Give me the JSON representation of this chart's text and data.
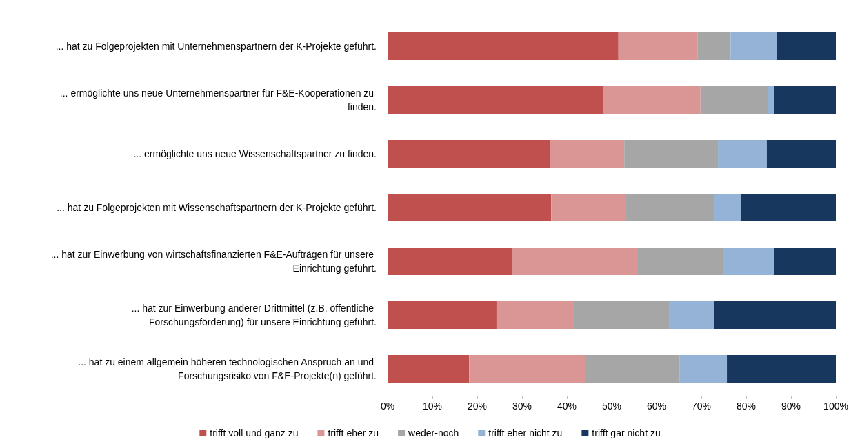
{
  "chart_data": {
    "type": "bar",
    "orientation": "horizontal",
    "stacked": true,
    "categories": [
      "... hat zu Folgeprojekten mit Unternehmenspartnern der K-Projekte geführt.",
      "... ermöglichte uns neue Unternehmenspartner für F&E-Kooperationen zu finden.",
      "... ermöglichte uns neue Wissenschaftspartner zu finden.",
      "... hat zu Folgeprojekten mit Wissenschaftspartnern der K-Projekte geführt.",
      "... hat zur Einwerbung von wirtschaftsfinanzierten F&E-Aufträgen für unsere Einrichtung geführt.",
      "... hat zur Einwerbung anderer Drittmittel (z.B. öffentliche Forschungsförderung) für unsere Einrichtung geführt.",
      "... hat zu einem allgemein höheren technologischen Anspruch an und Forschungsrisiko von F&E-Projekte(n) geführt."
    ],
    "series": [
      {
        "name": "trifft voll und ganz zu",
        "color": "#c0504d",
        "values": [
          51.5,
          48.0,
          36.2,
          36.5,
          27.7,
          24.3,
          18.2
        ]
      },
      {
        "name": "trifft eher zu",
        "color": "#d99694",
        "values": [
          17.7,
          21.8,
          16.6,
          16.6,
          28.0,
          17.1,
          25.8
        ]
      },
      {
        "name": "weder-noch",
        "color": "#a6a6a6",
        "values": [
          7.3,
          15.1,
          20.9,
          19.7,
          19.2,
          21.5,
          21.1
        ]
      },
      {
        "name": "trifft eher nicht zu",
        "color": "#95b3d7",
        "values": [
          10.3,
          1.3,
          10.9,
          6.0,
          11.3,
          10.0,
          10.6
        ]
      },
      {
        "name": "trifft gar nicht zu",
        "color": "#17375e",
        "values": [
          13.2,
          13.8,
          15.4,
          21.2,
          13.8,
          27.1,
          24.3
        ]
      }
    ],
    "xlim": [
      0,
      100
    ],
    "xticks": [
      {
        "value": 0,
        "label": "0%"
      },
      {
        "value": 10,
        "label": "10%"
      },
      {
        "value": 20,
        "label": "20%"
      },
      {
        "value": 30,
        "label": "30%"
      },
      {
        "value": 40,
        "label": "40%"
      },
      {
        "value": 50,
        "label": "50%"
      },
      {
        "value": 60,
        "label": "60%"
      },
      {
        "value": 70,
        "label": "70%"
      },
      {
        "value": 80,
        "label": "80%"
      },
      {
        "value": 90,
        "label": "90%"
      },
      {
        "value": 100,
        "label": "100%"
      }
    ],
    "grid": false,
    "legend": "bottom"
  }
}
